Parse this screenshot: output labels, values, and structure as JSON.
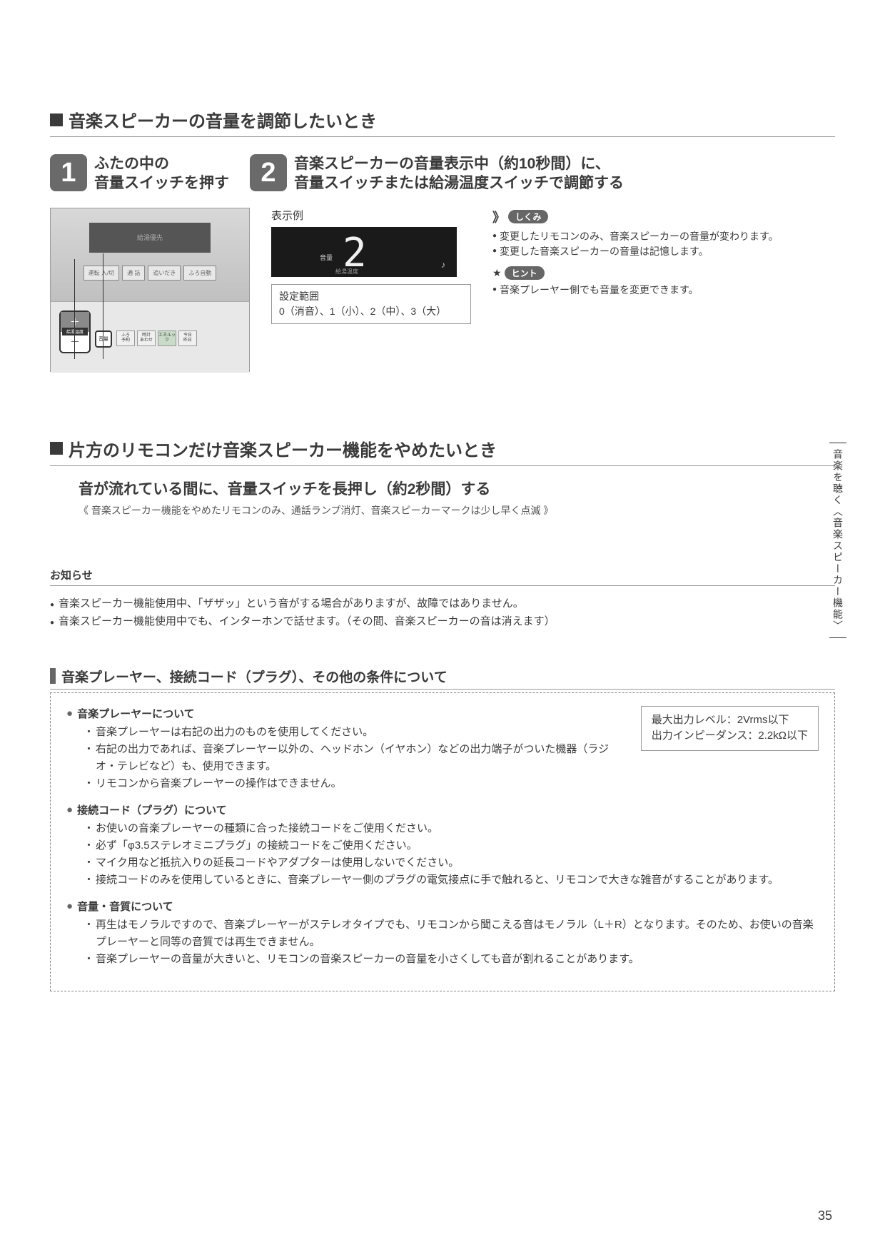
{
  "page_number": "35",
  "side_tab": "音楽を聴く︿音楽スピーカー機能﹀",
  "section1": {
    "title": "音楽スピーカーの音量を調節したいとき",
    "step1": {
      "num": "1",
      "text": "ふたの中の\n音量スイッチを押す"
    },
    "step2": {
      "num": "2",
      "text": "音楽スピーカーの音量表示中（約10秒間）に、\n音量スイッチまたは給湯温度スイッチで調節する"
    },
    "remote": {
      "screen_text": "給湯優先",
      "btns": [
        "運転 入/切",
        "通 話",
        "追いだき",
        "ふろ自動"
      ],
      "rocker_label": "給湯温度",
      "vol_label": "音量",
      "small_btns": [
        "ふろ\n予約",
        "時計\nあわせ",
        "エネルック",
        "今日\n昨日"
      ]
    },
    "display": {
      "label": "表示例",
      "digit": "2",
      "on_label": "音量",
      "bottom_label": "給湯温度",
      "note": "♪",
      "range_title": "設定範囲",
      "range_text": "0（消音）、1（小）、2（中）、3（大）"
    },
    "tips": {
      "badge1": "しくみ",
      "list1": [
        "変更したリモコンのみ、音楽スピーカーの音量が変わります。",
        "変更した音楽スピーカーの音量は記憶します。"
      ],
      "badge2": "ヒント",
      "list2": [
        "音楽プレーヤー側でも音量を変更できます。"
      ]
    }
  },
  "section2": {
    "title": "片方のリモコンだけ音楽スピーカー機能をやめたいとき",
    "instr": "音が流れている間に、音量スイッチを長押し（約2秒間）する",
    "instr_sub": "《 音楽スピーカー機能をやめたリモコンのみ、通話ランプ消灯、音楽スピーカーマークは少し早く点滅 》"
  },
  "oshirase": {
    "title": "お知らせ",
    "items": [
      "音楽スピーカー機能使用中、「ザザッ」という音がする場合がありますが、故障ではありません。",
      "音楽スピーカー機能使用中でも、インターホンで話せます。（その間、音楽スピーカーの音は消えます）"
    ]
  },
  "conditions": {
    "title": "音楽プレーヤー、接続コード（プラグ）、その他の条件について",
    "spec": {
      "line1": "最大出力レベル：2Vrms以下",
      "line2": "出力インピーダンス：2.2kΩ以下"
    },
    "groups": [
      {
        "head": "音楽プレーヤーについて",
        "items": [
          "音楽プレーヤーは右記の出力のものを使用してください。",
          "右記の出力であれば、音楽プレーヤー以外の、ヘッドホン（イヤホン）などの出力端子がついた機器（ラジオ・テレビなど）も、使用できます。",
          "リモコンから音楽プレーヤーの操作はできません。"
        ]
      },
      {
        "head": "接続コード（プラグ）について",
        "items": [
          "お使いの音楽プレーヤーの種類に合った接続コードをご使用ください。",
          "必ず「φ3.5ステレオミニプラグ」の接続コードをご使用ください。",
          "マイク用など抵抗入りの延長コードやアダプターは使用しないでください。",
          "接続コードのみを使用しているときに、音楽プレーヤー側のプラグの電気接点に手で触れると、リモコンで大きな雑音がすることがあります。"
        ]
      },
      {
        "head": "音量・音質について",
        "items": [
          "再生はモノラルですので、音楽プレーヤーがステレオタイプでも、リモコンから聞こえる音はモノラル（L＋R）となります。そのため、お使いの音楽プレーヤーと同等の音質では再生できません。",
          "音楽プレーヤーの音量が大きいと、リモコンの音楽スピーカーの音量を小さくしても音が割れることがあります。"
        ]
      }
    ]
  }
}
